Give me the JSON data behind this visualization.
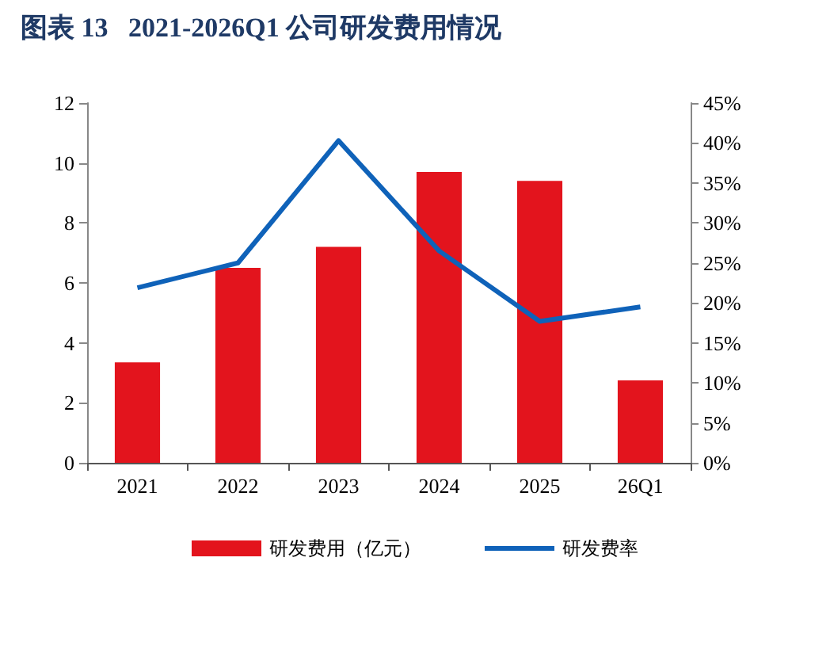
{
  "chart_data": {
    "type": "bar",
    "title": "图表 13   2021-2026Q1 公司研发费用情况",
    "categories": [
      "2021",
      "2022",
      "2023",
      "2024",
      "2025",
      "26Q1"
    ],
    "series": [
      {
        "name": "研发费用（亿元）",
        "color": "#e3141d",
        "values": [
          3.35,
          6.5,
          7.2,
          9.7,
          9.4,
          2.75
        ]
      },
      {
        "name": "研发费率",
        "type": "line",
        "axis": "y2",
        "color": "#0f62b9",
        "values": [
          21.9,
          25.0,
          40.3,
          26.5,
          17.7,
          19.5
        ]
      }
    ],
    "ylim": [
      0,
      12
    ],
    "yticks": [
      0,
      2,
      4,
      6,
      8,
      10,
      12
    ],
    "y2lim": [
      0,
      45
    ],
    "y2ticks": [
      {
        "value": 0,
        "label": "0%"
      },
      {
        "value": 5,
        "label": "5%"
      },
      {
        "value": 10,
        "label": "10%"
      },
      {
        "value": 15,
        "label": "15%"
      },
      {
        "value": 20,
        "label": "20%"
      },
      {
        "value": 25,
        "label": "25%"
      },
      {
        "value": 30,
        "label": "30%"
      },
      {
        "value": 35,
        "label": "35%"
      },
      {
        "value": 40,
        "label": "40%"
      },
      {
        "value": 45,
        "label": "45%"
      }
    ],
    "grid": false,
    "legend": "bottom",
    "marker": "none"
  }
}
